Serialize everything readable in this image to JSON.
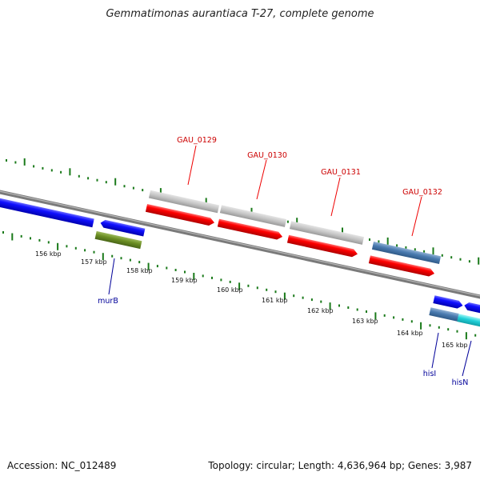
{
  "title": "Gemmatimonas aurantiaca T-27, complete genome",
  "accession": "Accession: NC_012489",
  "summary": "Topology: circular; Length: 4,636,964 bp; Genes: 3,987",
  "colors": {
    "backbone": "#808080",
    "ticks": "#1a7a1a",
    "gene_highlight": "#ff0000",
    "gene_label_highlight": "#cc0000",
    "gene_label": "#000099"
  },
  "scale_labels": [
    "156 kbp",
    "157 kbp",
    "158 kbp",
    "159 kbp",
    "160 kbp",
    "161 kbp",
    "162 kbp",
    "163 kbp",
    "164 kbp",
    "165 kbp"
  ],
  "top_gene_labels": [
    "GAU_0129",
    "GAU_0130",
    "GAU_0131",
    "GAU_0132"
  ],
  "bottom_gene_labels": [
    "murB",
    "hisI",
    "hisN"
  ]
}
